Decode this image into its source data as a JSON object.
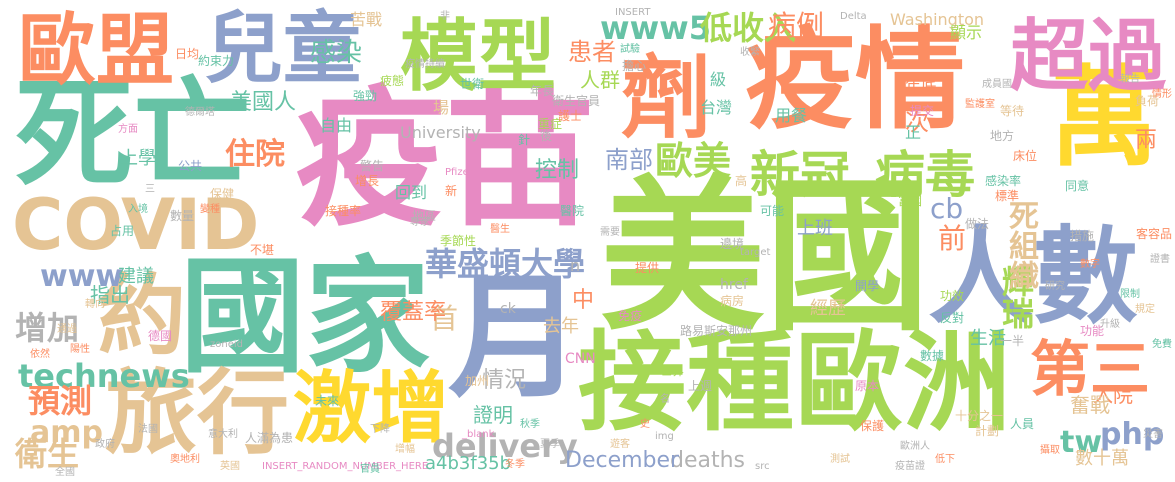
{
  "colors": {
    "green": "#a6d854",
    "teal": "#66c2a5",
    "orange": "#fc8d62",
    "blue": "#8da0cb",
    "pink": "#e78ac3",
    "yellow": "#ffd92f",
    "tan": "#e5c494",
    "gray": "#b3b3b3"
  },
  "words": [
    "美國",
    "疫苗",
    "國家",
    "疫情",
    "死亡",
    "接種",
    "歐洲",
    "月",
    "萬",
    "人數",
    "模型",
    "兒童",
    "歐盟",
    "超過",
    "劑",
    "旅行",
    "激增",
    "約",
    "COVID",
    "第三",
    "新冠",
    "病毒",
    "華盛頓大學",
    "歐美",
    "www5",
    "低收入",
    "病例",
    "delivery",
    "technews",
    "amp",
    "www",
    "增加",
    "預測",
    "衛生",
    "php",
    "tw",
    "cb",
    "輝瑞",
    "住院",
    "感染",
    "患者",
    "人群",
    "美國人",
    "死組織",
    "控制",
    "南部",
    "首",
    "中",
    "情況",
    "證明",
    "deaths",
    "December",
    "a4b3f35b",
    "去年",
    "入院",
    "生活",
    "經歷",
    "上班",
    "建議",
    "指出",
    "上學",
    "前",
    "次",
    "兩",
    "奮戰",
    "數十萬",
    "Washington",
    "University",
    "自由",
    "台灣",
    "用餐",
    "年底",
    "顯示",
    "回到",
    "場",
    "級",
    "正",
    "苦戰",
    "ck",
    "href",
    "n",
    "Delta",
    "INSERT",
    "INSERT_RANDOM_NUMBER_HERE",
    "覆蓋率",
    "三",
    "Pfizer",
    "target",
    "zoneid",
    "src",
    "_blank",
    "CNN",
    "img",
    "世界",
    "加州",
    "路易斯安那州",
    "原本",
    "十分之一",
    "一半",
    "人員",
    "計劃",
    "攝取",
    "免疫",
    "人滿為患",
    "德爾塔",
    "公共",
    "功效",
    "方面",
    "接種率",
    "監護室",
    "反對",
    "提交",
    "地方",
    "標準",
    "做法",
    "床位",
    "感染率",
    "等待",
    "成員國",
    "試驗",
    "擔心",
    "保護",
    "歐洲人",
    "衛生官員",
    "重症",
    "護士",
    "可能",
    "病房",
    "高",
    "同意",
    "措施",
    "負荷",
    "客容品",
    "數據",
    "邊境",
    "提供",
    "未來",
    "需要",
    "醫院",
    "警告",
    "增長",
    "地區",
    "新",
    "強勁",
    "約束力",
    "功能",
    "災害",
    "開學",
    "季節性",
    "上週",
    "變種",
    "不堪",
    "入境",
    "數量",
    "保健",
    "疫情持續",
    "富國",
    "年長",
    "日均",
    "收緊",
    "疲態",
    "世衛",
    "針",
    "後",
    "非",
    "依然",
    "陽性",
    "轉向",
    "占用",
    "通過",
    "德國",
    "法國",
    "奧地利",
    "意大利",
    "英國",
    "全國",
    "政府",
    "官員",
    "專家",
    "醫生",
    "研究",
    "數字",
    "報告",
    "情形",
    "升級",
    "限制",
    "規定",
    "證書",
    "免費",
    "疫苗證",
    "低下",
    "測試",
    "名",
    "史",
    "遊客",
    "夏季",
    "秋季",
    "冬季",
    "增幅",
    "下降",
    "上升",
    "速度",
    "水平",
    "比例",
    "人口",
    "總數",
    "數百萬",
    "每日",
    "每週",
    "一週"
  ]
}
